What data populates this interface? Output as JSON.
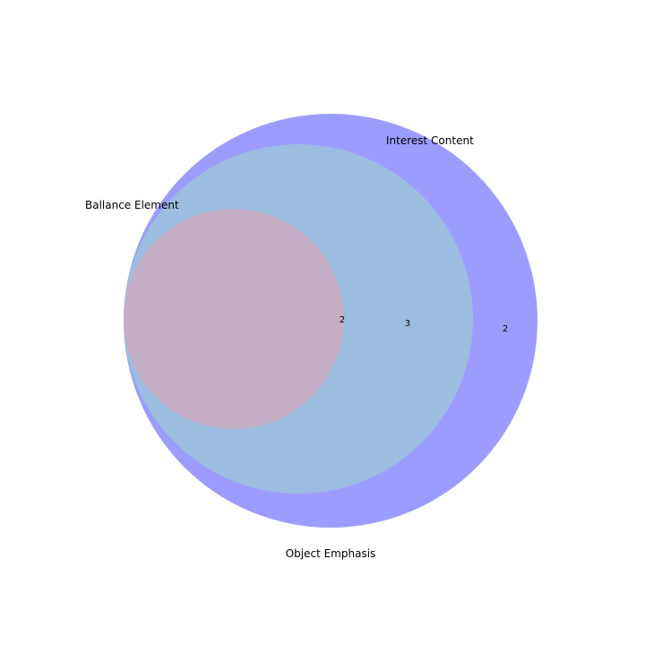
{
  "diagram": {
    "type": "venn",
    "sets": [
      {
        "key": "object",
        "label": "Object Emphasis",
        "color": "#9c9cff",
        "only_count": "2"
      },
      {
        "key": "interest",
        "label": "Interest Content",
        "color": "#9bbde0",
        "only_count": "3"
      },
      {
        "key": "balance",
        "label": "Ballance Element",
        "color": "#c3aec6",
        "only_count": "2"
      }
    ]
  }
}
